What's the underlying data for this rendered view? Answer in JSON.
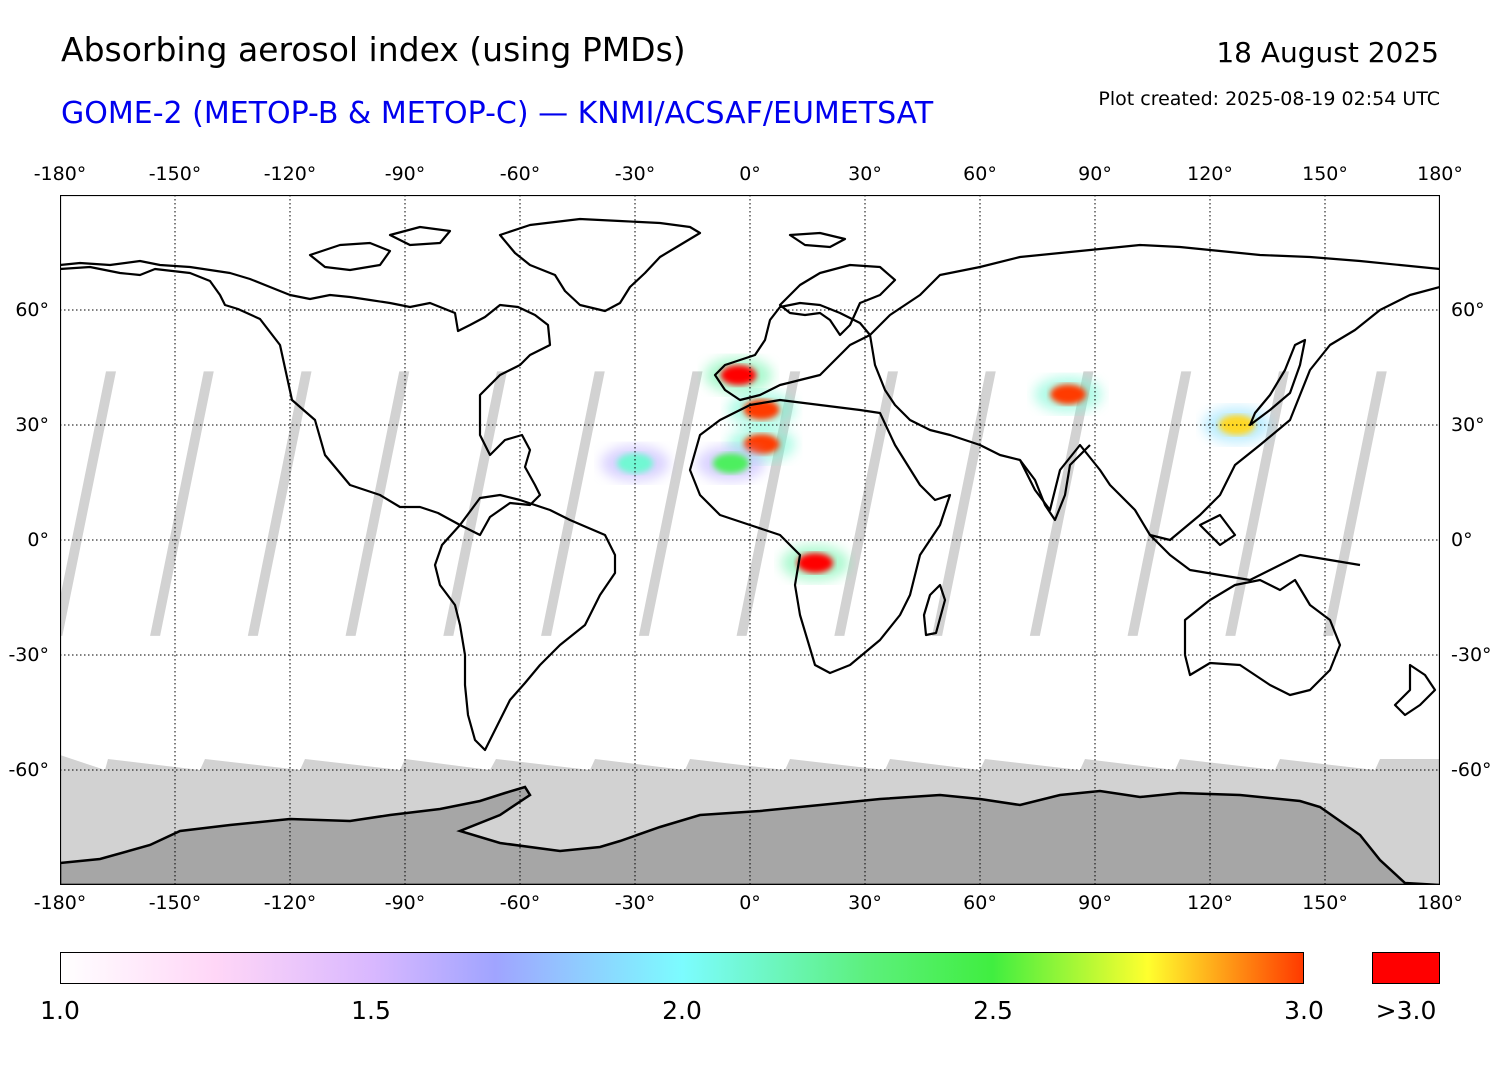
{
  "title": "Absorbing aerosol index (using PMDs)",
  "subtitle": "GOME-2 (METOP-B & METOP-C) — KNMI/ACSAF/EUMETSAT",
  "date": "18 August 2025",
  "plot_created": "Plot created: 2025-08-19 02:54 UTC",
  "map": {
    "projection": "equirectangular",
    "lon_range": [
      -180,
      180
    ],
    "lat_range": [
      -90,
      90
    ],
    "grid": "dotted",
    "lon_ticks": [
      {
        "value": -180,
        "label": "-180°"
      },
      {
        "value": -150,
        "label": "-150°"
      },
      {
        "value": -120,
        "label": "-120°"
      },
      {
        "value": -90,
        "label": "-90°"
      },
      {
        "value": -60,
        "label": "-60°"
      },
      {
        "value": -30,
        "label": "-30°"
      },
      {
        "value": 0,
        "label": "0°"
      },
      {
        "value": 30,
        "label": "30°"
      },
      {
        "value": 60,
        "label": "60°"
      },
      {
        "value": 90,
        "label": "90°"
      },
      {
        "value": 120,
        "label": "120°"
      },
      {
        "value": 150,
        "label": "150°"
      },
      {
        "value": 180,
        "label": "180°"
      }
    ],
    "lat_ticks": [
      {
        "value": 60,
        "label": "60°"
      },
      {
        "value": 30,
        "label": "30°"
      },
      {
        "value": 0,
        "label": "0°"
      },
      {
        "value": -30,
        "label": "-30°"
      },
      {
        "value": -60,
        "label": "-60°"
      }
    ],
    "colors": {
      "ocean": "#ffffff",
      "no_data": "#d2d2d2",
      "antarctica": "#a6a6a6",
      "coastline": "#000000",
      "over_max": "#ff0000"
    },
    "aerosol_plumes": [
      {
        "region": "Central Africa",
        "lon": 17,
        "lat": -6,
        "value": 3.1
      },
      {
        "region": "Sahara",
        "lon": 3,
        "lat": 25,
        "value": 3.0
      },
      {
        "region": "Iberia",
        "lon": -3,
        "lat": 43,
        "value": 3.1
      },
      {
        "region": "North Africa",
        "lon": 3,
        "lat": 34,
        "value": 3.0
      },
      {
        "region": "Central Asia",
        "lon": 83,
        "lat": 38,
        "value": 3.0
      },
      {
        "region": "Japan",
        "lon": 127,
        "lat": 30,
        "value": 2.8
      },
      {
        "region": "West Africa",
        "lon": -5,
        "lat": 20,
        "value": 2.4
      },
      {
        "region": "Tropical Atlantic",
        "lon": -30,
        "lat": 20,
        "value": 2.1
      }
    ]
  },
  "colorbar": {
    "min": 1.0,
    "max": 3.0,
    "labels": [
      "1.0",
      "1.5",
      "2.0",
      "2.5",
      "3.0"
    ],
    "over_label": ">3.0",
    "stops": [
      {
        "value": 1.0,
        "color": "#ffffff"
      },
      {
        "value": 1.25,
        "color": "#ffd6f7"
      },
      {
        "value": 1.5,
        "color": "#d9b8ff"
      },
      {
        "value": 1.7,
        "color": "#a0a4ff"
      },
      {
        "value": 2.0,
        "color": "#7cfcff"
      },
      {
        "value": 2.3,
        "color": "#5cf07c"
      },
      {
        "value": 2.5,
        "color": "#40ee40"
      },
      {
        "value": 2.75,
        "color": "#ffff2e"
      },
      {
        "value": 3.0,
        "color": "#ff3a00"
      }
    ]
  }
}
